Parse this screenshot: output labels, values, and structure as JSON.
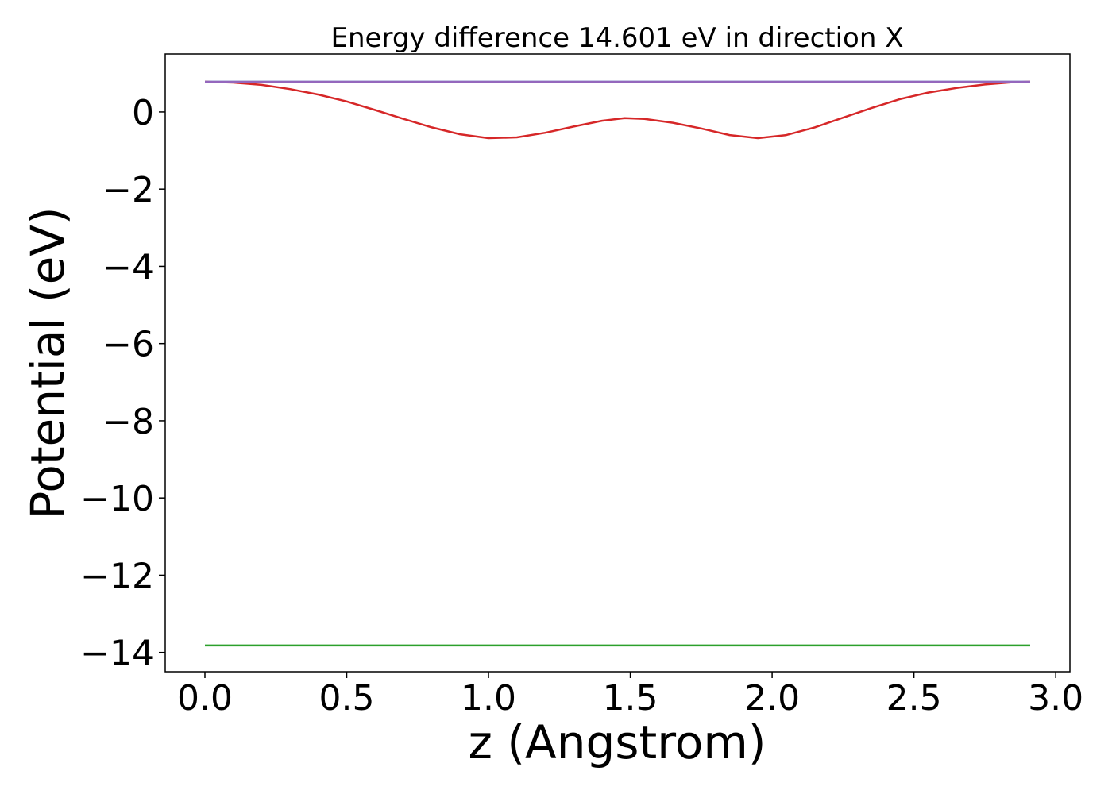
{
  "chart_data": {
    "type": "line",
    "title": "Energy difference 14.601 eV in direction X",
    "xlabel": "z (Angstrom)",
    "ylabel": "Potential (eV)",
    "xlim": [
      -0.14,
      3.05
    ],
    "ylim": [
      -14.5,
      1.5
    ],
    "xticks": [
      0.0,
      0.5,
      1.0,
      1.5,
      2.0,
      2.5,
      3.0
    ],
    "xtick_labels": [
      "0.0",
      "0.5",
      "1.0",
      "1.5",
      "2.0",
      "2.5",
      "3.0"
    ],
    "yticks": [
      0,
      -2,
      -4,
      -6,
      -8,
      -10,
      -12,
      -14
    ],
    "ytick_labels": [
      "0",
      "−2",
      "−4",
      "−6",
      "−8",
      "−10",
      "−12",
      "−14"
    ],
    "grid": false,
    "series": [
      {
        "color": "#1f77b4",
        "x": [
          0.0,
          2.91
        ],
        "y": [
          0.78,
          0.78
        ]
      },
      {
        "color": "#2ca02c",
        "x": [
          0.0,
          2.91
        ],
        "y": [
          -13.82,
          -13.82
        ]
      },
      {
        "color": "#d62728",
        "x": [
          0.0,
          0.1,
          0.2,
          0.3,
          0.4,
          0.5,
          0.6,
          0.7,
          0.8,
          0.9,
          1.0,
          1.1,
          1.2,
          1.3,
          1.4,
          1.48,
          1.55,
          1.65,
          1.75,
          1.85,
          1.95,
          2.05,
          2.15,
          2.25,
          2.35,
          2.45,
          2.55,
          2.65,
          2.75,
          2.85,
          2.91
        ],
        "y": [
          0.78,
          0.76,
          0.7,
          0.59,
          0.45,
          0.27,
          0.05,
          -0.18,
          -0.4,
          -0.58,
          -0.68,
          -0.66,
          -0.54,
          -0.38,
          -0.23,
          -0.16,
          -0.18,
          -0.28,
          -0.43,
          -0.6,
          -0.68,
          -0.6,
          -0.4,
          -0.15,
          0.1,
          0.33,
          0.5,
          0.62,
          0.71,
          0.77,
          0.78
        ]
      },
      {
        "color": "#9467bd",
        "x": [
          0.0,
          2.91
        ],
        "y": [
          0.78,
          0.78
        ]
      }
    ]
  }
}
